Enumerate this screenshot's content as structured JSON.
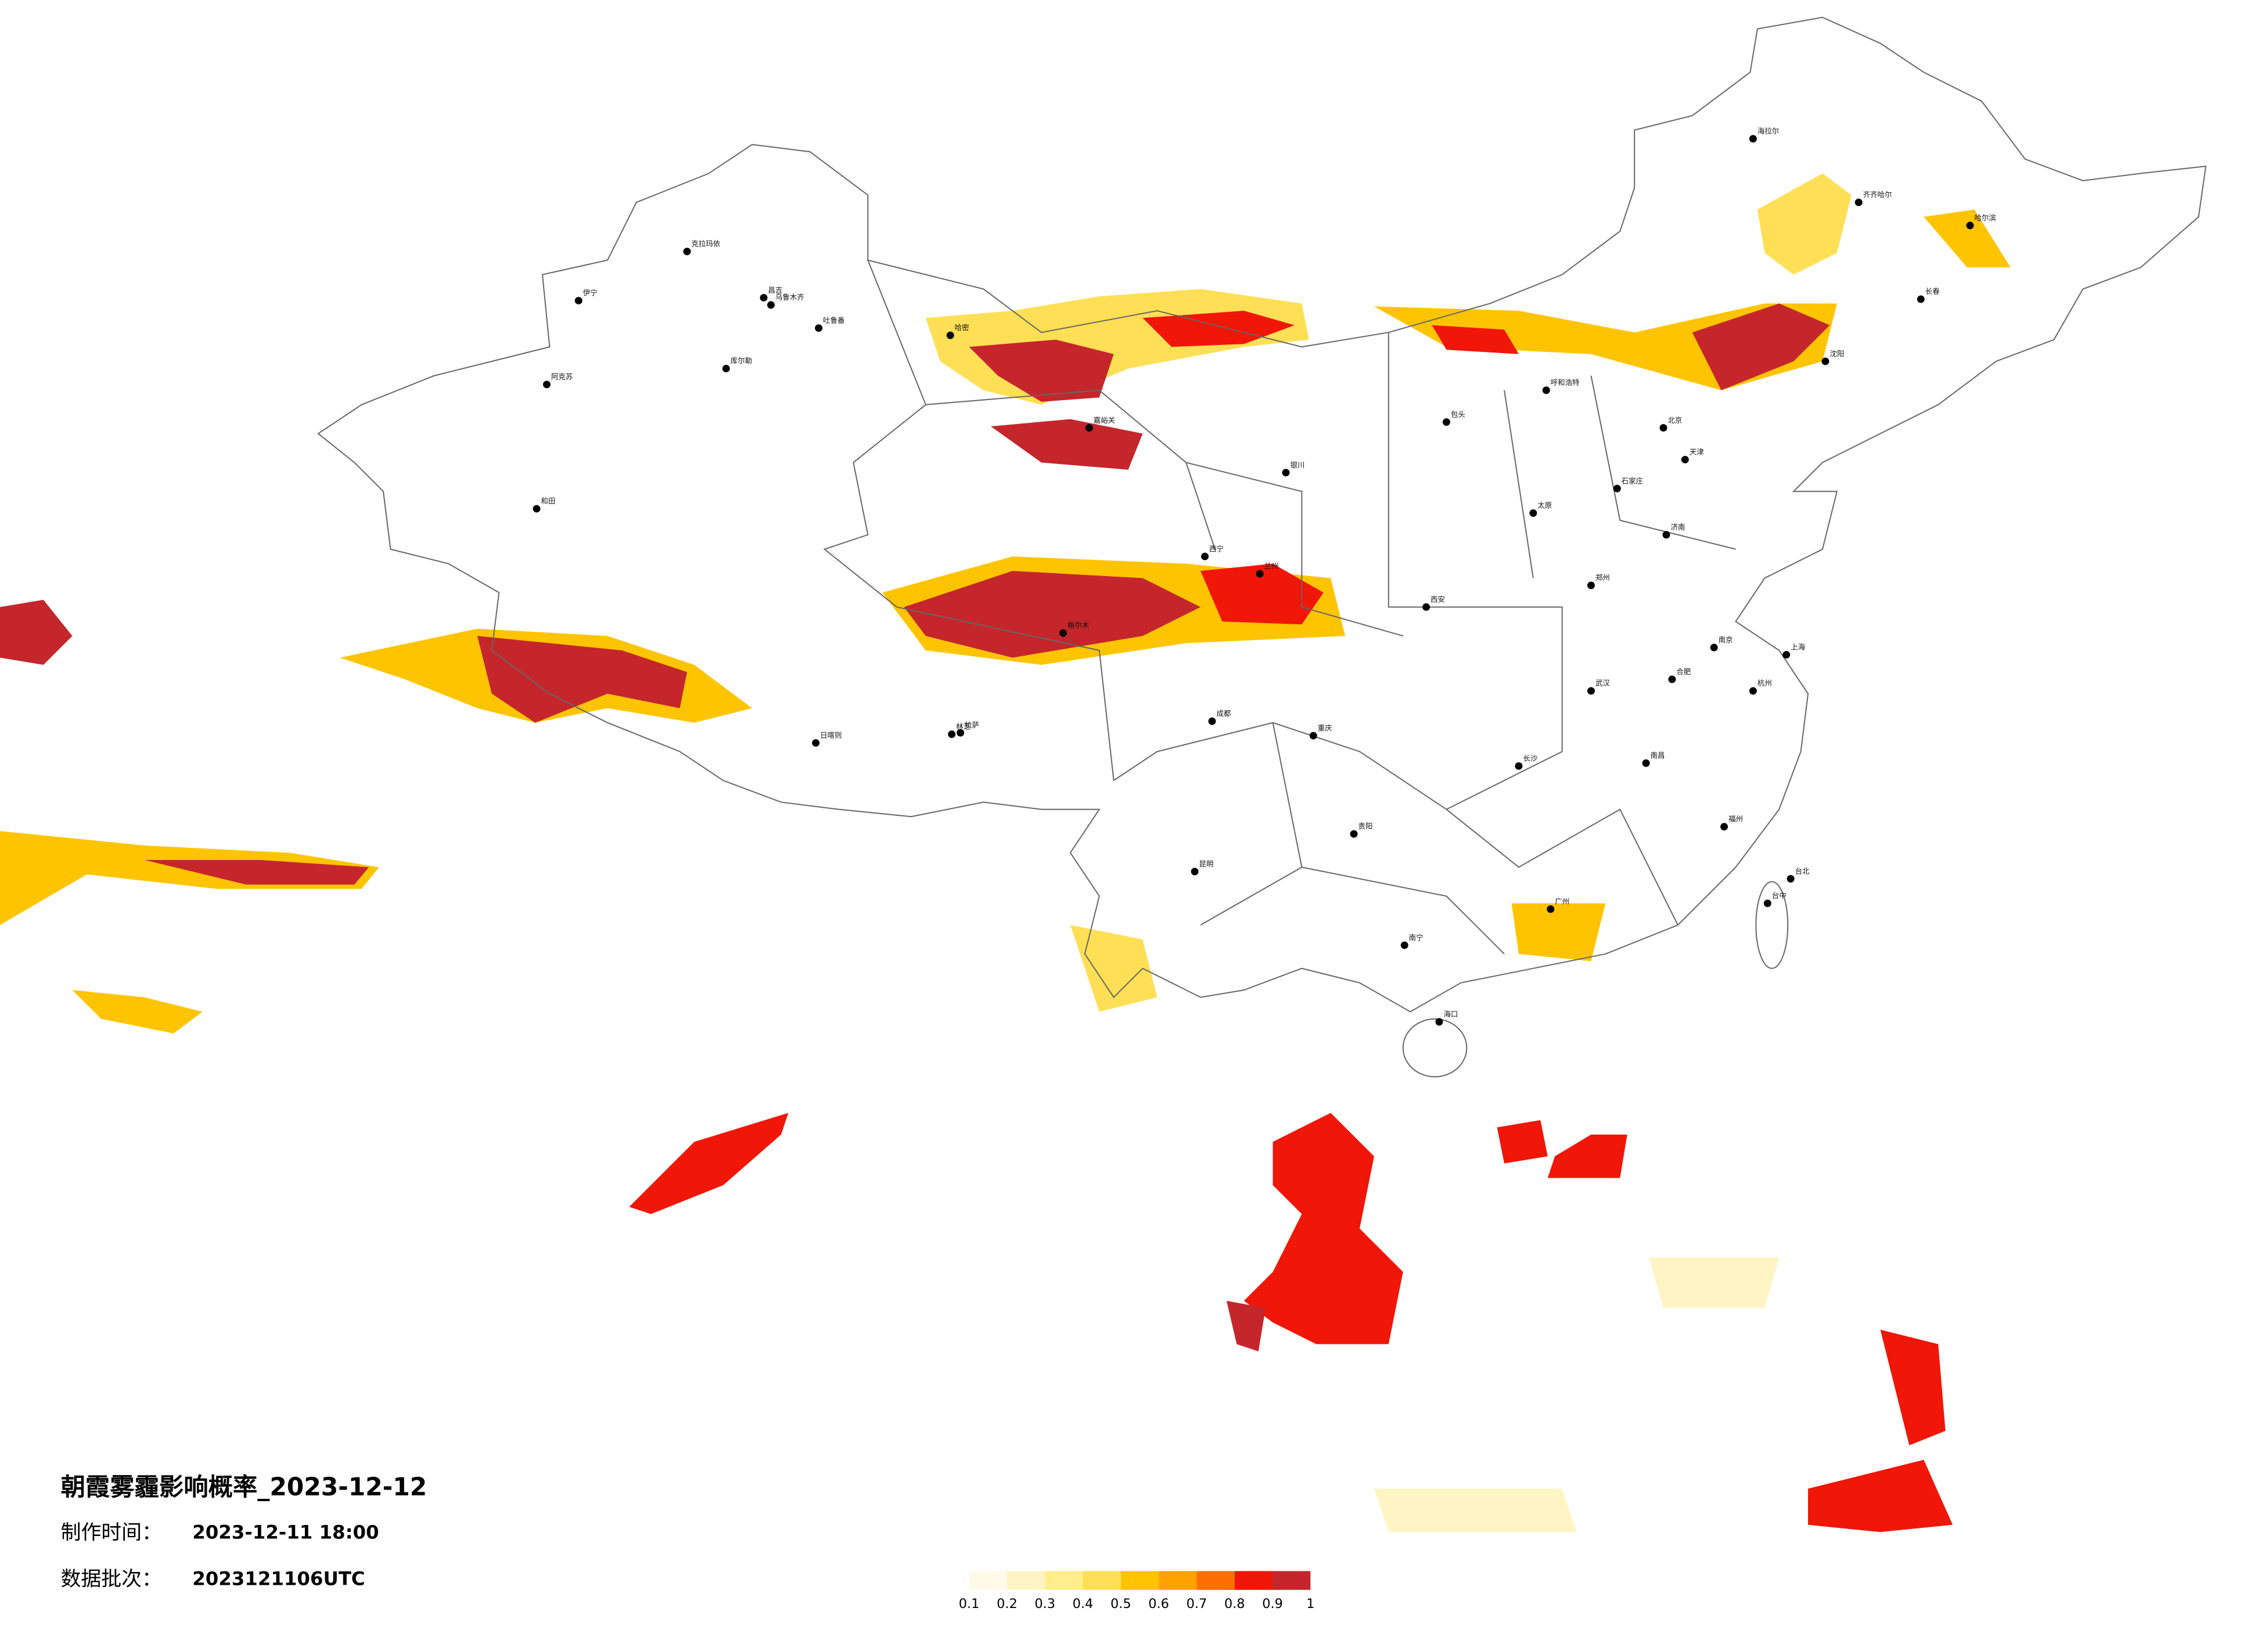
{
  "header": {
    "title": "朝霞雾霾影响概率_2023-12-12",
    "made_label": "制作时间：",
    "made_time": "2023-12-11 18:00",
    "batch_label": "数据批次：",
    "batch": "2023121106UTC"
  },
  "legend": {
    "colors": [
      "#fffbe8",
      "#fff5c4",
      "#ffee8a",
      "#ffdf55",
      "#ffc400",
      "#ffa200",
      "#ff6f00",
      "#f01608",
      "#c4262c"
    ],
    "ticks": [
      0.1,
      0.2,
      0.3,
      0.4,
      0.5,
      0.6,
      0.7,
      0.8,
      0.9,
      1
    ]
  },
  "cities": [
    {
      "name": "克拉玛依"
    },
    {
      "name": "伊宁"
    },
    {
      "name": "昌吉"
    },
    {
      "name": "乌鲁木齐"
    },
    {
      "name": "吐鲁番"
    },
    {
      "name": "库尔勒"
    },
    {
      "name": "阿克苏"
    },
    {
      "name": "和田"
    },
    {
      "name": "哈密"
    },
    {
      "name": "嘉峪关"
    },
    {
      "name": "格尔木"
    },
    {
      "name": "拉萨"
    },
    {
      "name": "日喀则"
    },
    {
      "name": "林芝"
    },
    {
      "name": "西宁"
    },
    {
      "name": "兰州"
    },
    {
      "name": "银川"
    },
    {
      "name": "呼和浩特"
    },
    {
      "name": "包头"
    },
    {
      "name": "北京"
    },
    {
      "name": "天津"
    },
    {
      "name": "石家庄"
    },
    {
      "name": "太原"
    },
    {
      "name": "济南"
    },
    {
      "name": "郑州"
    },
    {
      "name": "西安"
    },
    {
      "name": "成都"
    },
    {
      "name": "重庆"
    },
    {
      "name": "贵阳"
    },
    {
      "name": "昆明"
    },
    {
      "name": "南宁"
    },
    {
      "name": "广州"
    },
    {
      "name": "海口"
    },
    {
      "name": "长沙"
    },
    {
      "name": "武汉"
    },
    {
      "name": "南昌"
    },
    {
      "name": "福州"
    },
    {
      "name": "杭州"
    },
    {
      "name": "上海"
    },
    {
      "name": "南京"
    },
    {
      "name": "合肥"
    },
    {
      "name": "沈阳"
    },
    {
      "name": "长春"
    },
    {
      "name": "哈尔滨"
    },
    {
      "name": "齐齐哈尔"
    },
    {
      "name": "海拉尔"
    },
    {
      "name": "台北"
    },
    {
      "name": "台中"
    }
  ]
}
